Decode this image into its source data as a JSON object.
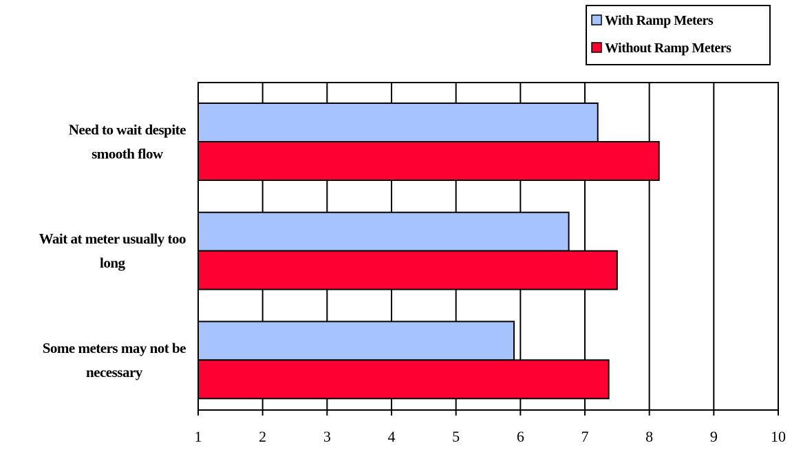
{
  "chart_data": {
    "type": "bar",
    "orientation": "horizontal",
    "categories": [
      "Need to wait despite smooth flow",
      "Wait at meter usually too long",
      "Some meters may not be necessary"
    ],
    "category_lines": [
      [
        "Need to wait despite",
        "smooth flow"
      ],
      [
        "Wait at meter usually too",
        "long"
      ],
      [
        "Some meters may not be",
        "necessary"
      ]
    ],
    "series": [
      {
        "name": "With Ramp Meters",
        "color": "#A6C3FF",
        "values": [
          7.2,
          6.75,
          5.9
        ]
      },
      {
        "name": "Without Ramp Meters",
        "color": "#FF0033",
        "values": [
          8.15,
          7.5,
          7.37
        ]
      }
    ],
    "xlim": [
      1,
      10
    ],
    "xticks": [
      1,
      2,
      3,
      4,
      5,
      6,
      7,
      8,
      9,
      10
    ],
    "xlabel": "",
    "ylabel": "",
    "title": "",
    "grid": "vertical",
    "legend_position": "top-right"
  }
}
